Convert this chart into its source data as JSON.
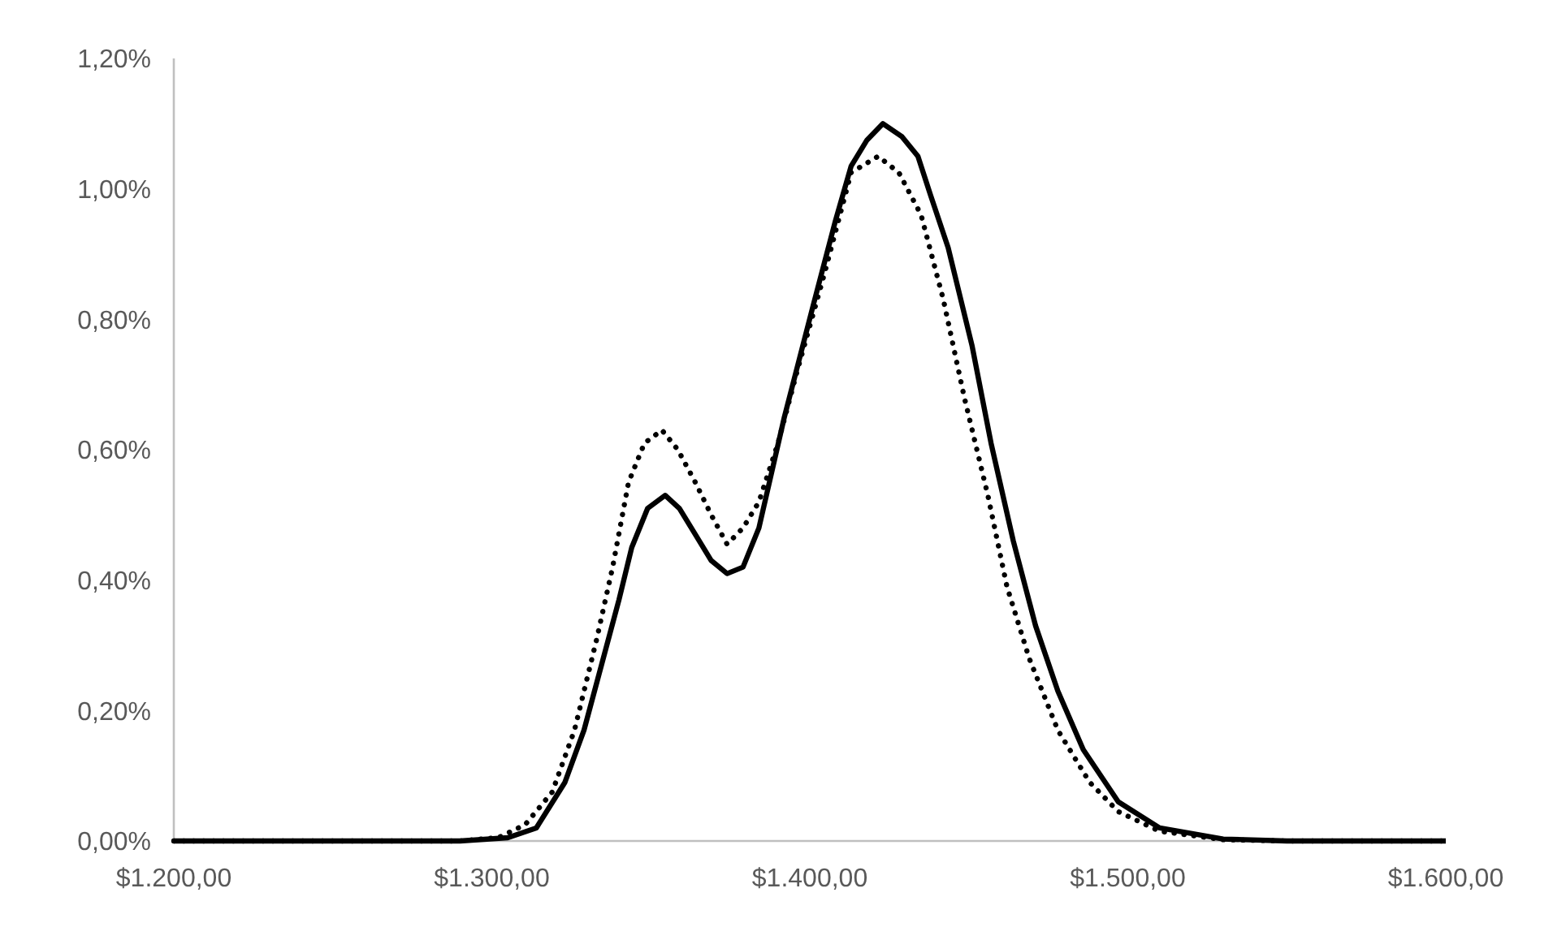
{
  "chart_data": {
    "type": "line",
    "xlim": [
      1200,
      1600
    ],
    "xticks": [
      {
        "value": 1200,
        "label": "$1.200,00"
      },
      {
        "value": 1300,
        "label": "$1.300,00"
      },
      {
        "value": 1400,
        "label": "$1.400,00"
      },
      {
        "value": 1500,
        "label": "$1.500,00"
      },
      {
        "value": 1600,
        "label": "$1.600,00"
      }
    ],
    "ylim": [
      0,
      1.2
    ],
    "yticks": [
      {
        "value": 0,
        "label": "0,00%"
      },
      {
        "value": 0.2,
        "label": "0,20%"
      },
      {
        "value": 0.4,
        "label": "0,40%"
      },
      {
        "value": 0.6,
        "label": "0,60%"
      },
      {
        "value": 0.8,
        "label": "0,80%"
      },
      {
        "value": 1,
        "label": "1,00%"
      },
      {
        "value": 1.2,
        "label": "1,20%"
      }
    ],
    "marker": "none",
    "series": [
      {
        "color": "#000000",
        "line_style": "solid",
        "x": [
          1200,
          1250,
          1290,
          1305,
          1314,
          1323,
          1329,
          1334.5,
          1340,
          1344,
          1349,
          1354.5,
          1359,
          1364,
          1369,
          1374,
          1379,
          1384,
          1392,
          1401,
          1408,
          1413,
          1418,
          1423,
          1429,
          1434,
          1438,
          1443.5,
          1451,
          1457,
          1464,
          1471,
          1478,
          1486,
          1497,
          1510,
          1530,
          1550,
          1600
        ],
        "values": [
          0,
          0,
          0,
          0.005,
          0.02,
          0.09,
          0.17,
          0.27,
          0.37,
          0.45,
          0.51,
          0.53,
          0.51,
          0.47,
          0.43,
          0.41,
          0.42,
          0.48,
          0.65,
          0.82,
          0.95,
          1.035,
          1.075,
          1.1,
          1.08,
          1.05,
          0.99,
          0.91,
          0.76,
          0.61,
          0.46,
          0.33,
          0.23,
          0.14,
          0.06,
          0.02,
          0.003,
          0,
          0
        ]
      },
      {
        "color": "#000000",
        "line_style": "dotted",
        "x": [
          1200,
          1250,
          1290,
          1302,
          1310.5,
          1319,
          1326,
          1333,
          1338,
          1343,
          1348,
          1353.5,
          1358.5,
          1364,
          1369,
          1374,
          1379,
          1384,
          1390,
          1396,
          1404.6,
          1413,
          1421.5,
          1428,
          1435,
          1442,
          1448.6,
          1456,
          1462,
          1469,
          1478,
          1488,
          1497,
          1510,
          1530,
          1550,
          1600
        ],
        "values": [
          0,
          0,
          0,
          0.005,
          0.025,
          0.075,
          0.17,
          0.31,
          0.42,
          0.55,
          0.61,
          0.63,
          0.6,
          0.55,
          0.5,
          0.455,
          0.48,
          0.52,
          0.61,
          0.72,
          0.87,
          1.025,
          1.05,
          1.025,
          0.96,
          0.83,
          0.68,
          0.53,
          0.39,
          0.28,
          0.17,
          0.09,
          0.045,
          0.015,
          0.002,
          0,
          0
        ]
      }
    ]
  }
}
